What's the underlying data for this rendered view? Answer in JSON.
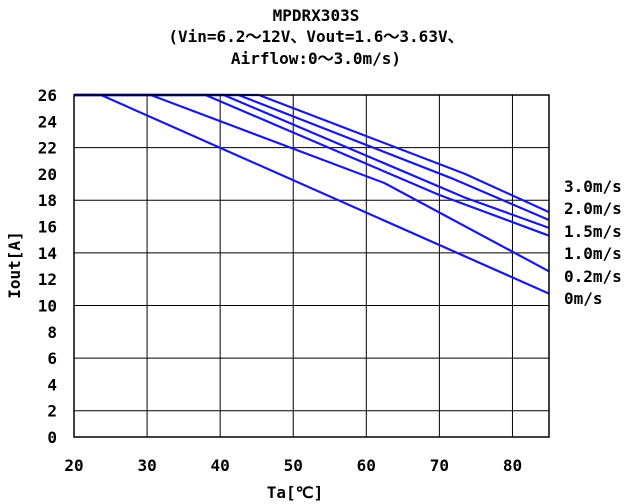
{
  "chart_data": {
    "type": "line",
    "title_lines": [
      "MPDRX303S",
      "(Vin=6.2～12V、Vout=1.6～3.63V、",
      "Airflow:0～3.0m/s)"
    ],
    "xlabel": "Ta[℃]",
    "ylabel": "Iout[A]",
    "xlim": [
      20,
      85
    ],
    "ylim": [
      0,
      26
    ],
    "x_ticks": [
      "20",
      "30",
      "40",
      "50",
      "60",
      "70",
      "80"
    ],
    "y_ticks": [
      "0",
      "2",
      "4",
      "6",
      "8",
      "10",
      "12",
      "14",
      "16",
      "18",
      "20",
      "22",
      "24",
      "26"
    ],
    "grid": true,
    "line_color": "#1a1adf",
    "series": [
      {
        "name": "3.0m/s",
        "points": [
          [
            20,
            26
          ],
          [
            45.3,
            26
          ],
          [
            73.5,
            20
          ],
          [
            85,
            17.1
          ]
        ]
      },
      {
        "name": "2.0m/s",
        "points": [
          [
            20,
            26
          ],
          [
            42.5,
            26
          ],
          [
            72,
            19.6
          ],
          [
            85,
            16.5
          ]
        ]
      },
      {
        "name": "1.5m/s",
        "points": [
          [
            20,
            26
          ],
          [
            40.5,
            26
          ],
          [
            73.5,
            18.2
          ],
          [
            85,
            15.9
          ]
        ]
      },
      {
        "name": "1.0m/s",
        "points": [
          [
            20,
            26
          ],
          [
            38,
            26
          ],
          [
            70,
            18.4
          ],
          [
            85,
            15.3
          ]
        ]
      },
      {
        "name": "0.2m/s",
        "points": [
          [
            20,
            26
          ],
          [
            30.5,
            26
          ],
          [
            62.5,
            19.3
          ],
          [
            85,
            12.6
          ]
        ]
      },
      {
        "name": "0m/s",
        "points": [
          [
            20,
            26
          ],
          [
            23.7,
            26
          ],
          [
            85,
            10.9
          ]
        ]
      }
    ]
  }
}
